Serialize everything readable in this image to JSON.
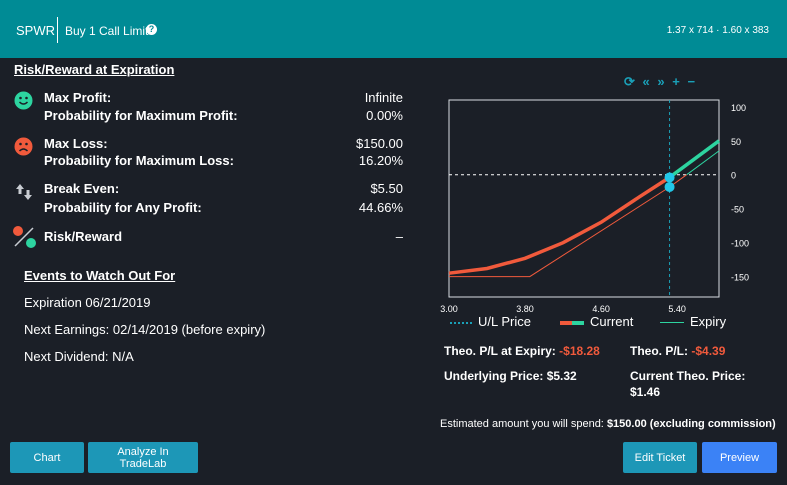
{
  "header": {
    "symbol": "SPWR",
    "order_type": "Buy 1 Call Limit",
    "help_icon": "question-icon",
    "quotes": "1.37 x 714 · 1.60 x 383"
  },
  "risk_reward": {
    "title": "Risk/Reward at Expiration",
    "max_profit_label": "Max Profit:",
    "max_profit_value": "Infinite",
    "prob_max_profit_label": "Probability for Maximum Profit:",
    "prob_max_profit_value": "0.00%",
    "max_loss_label": "Max Loss:",
    "max_loss_value": "$150.00",
    "prob_max_loss_label": "Probability for Maximum Loss:",
    "prob_max_loss_value": "16.20%",
    "break_even_label": "Break Even:",
    "break_even_value": "$5.50",
    "prob_any_profit_label": "Probability for Any Profit:",
    "prob_any_profit_value": "44.66%",
    "risk_reward_label": "Risk/Reward",
    "risk_reward_value": "–"
  },
  "events": {
    "title": "Events to Watch Out For",
    "expiration": "Expiration 06/21/2019",
    "earnings": "Next Earnings: 02/14/2019 (before expiry)",
    "dividend": "Next Dividend: N/A"
  },
  "chart_tools": [
    "refresh-icon",
    "rewind-icon",
    "fast-forward-icon",
    "zoom-in-icon",
    "zoom-out-icon"
  ],
  "chart_data": {
    "type": "line",
    "x_ticks": [
      "3.00",
      "3.80",
      "4.60",
      "5.40"
    ],
    "y_ticks": [
      "100",
      "50",
      "0",
      "-50",
      "-100",
      "-150"
    ],
    "xlim": [
      3.0,
      5.84
    ],
    "ylim": [
      -180,
      110
    ],
    "underlying_price": 5.32,
    "series": [
      {
        "name": "Current",
        "color": "#f15a3c",
        "color_profit": "#2dd4a0",
        "x": [
          3.0,
          3.4,
          3.8,
          4.2,
          4.6,
          5.0,
          5.32,
          5.6,
          5.84
        ],
        "y": [
          -145,
          -138,
          -123,
          -100,
          -70,
          -33,
          -4,
          25,
          50
        ]
      },
      {
        "name": "Expiry",
        "color": "#f15a3c",
        "color_profit": "#2dd4a0",
        "x": [
          3.0,
          3.85,
          5.32,
          5.5,
          5.84
        ],
        "y": [
          -150,
          -150,
          -18,
          0,
          35
        ]
      }
    ],
    "legend": [
      {
        "label": "U/L Price",
        "style": "dotted",
        "color": "#1aa0b8"
      },
      {
        "label": "Current",
        "style": "thick",
        "color_a": "#f15a3c",
        "color_b": "#2dd4a0"
      },
      {
        "label": "Expiry",
        "style": "thin",
        "color": "#2dd4a0"
      }
    ]
  },
  "theo": {
    "pl_expiry_label": "Theo. P/L at Expiry:",
    "pl_expiry_value": "-$18.28",
    "pl_label": "Theo. P/L:",
    "pl_value": "-$4.39",
    "underlying_label": "Underlying Price: $5.32",
    "current_price_label": "Current Theo. Price:",
    "current_price_value": "$1.46"
  },
  "spend": {
    "label": "Estimated amount you will spend:",
    "value": "$150.00 (excluding commission)"
  },
  "buttons": {
    "chart": "Chart",
    "analyze": "Analyze In TradeLab",
    "edit": "Edit Ticket",
    "preview": "Preview"
  }
}
